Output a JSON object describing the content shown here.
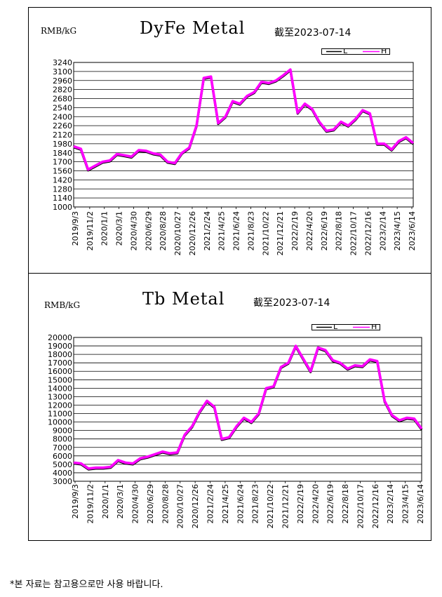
{
  "chart_data": [
    {
      "type": "line",
      "title": "DyFe Metal",
      "ylabel": "RMB/kG",
      "as_of": "截至2023-07-14",
      "ylim": [
        1000,
        3240
      ],
      "y_ticks": [
        "3240",
        "3100",
        "2960",
        "2820",
        "2680",
        "2540",
        "2400",
        "2260",
        "2120",
        "1980",
        "1840",
        "1700",
        "1560",
        "1420",
        "1280",
        "1140",
        "1000"
      ],
      "x_ticks": [
        "2019/9/3",
        "2019/11/2",
        "2020/1/1",
        "2020/3/1",
        "2020/4/30",
        "2020/6/29",
        "2020/8/28",
        "2020/10/27",
        "2020/12/26",
        "2021/2/24",
        "2021/4/25",
        "2021/6/24",
        "2021/8/23",
        "2021/10/22",
        "2021/12/21",
        "2022/2/19",
        "2022/4/20",
        "2022/6/19",
        "2022/8/18",
        "2022/10/17",
        "2022/12/16",
        "2023/2/14",
        "2023/4/15",
        "2023/6/14"
      ],
      "grid": true,
      "legend_position": "top-right",
      "colors": {
        "series1": "#000000",
        "series2": "#ff00ff"
      },
      "x": [
        "2019-09-03",
        "2019-10-03",
        "2019-11-02",
        "2019-12-02",
        "2020-01-01",
        "2020-01-31",
        "2020-03-01",
        "2020-03-31",
        "2020-04-30",
        "2020-05-30",
        "2020-06-29",
        "2020-07-29",
        "2020-08-28",
        "2020-09-27",
        "2020-10-27",
        "2020-11-26",
        "2020-12-26",
        "2021-01-25",
        "2021-02-24",
        "2021-03-26",
        "2021-04-25",
        "2021-05-25",
        "2021-06-24",
        "2021-07-24",
        "2021-08-23",
        "2021-09-22",
        "2021-10-22",
        "2021-11-21",
        "2021-12-21",
        "2022-01-20",
        "2022-02-19",
        "2022-03-21",
        "2022-04-20",
        "2022-05-20",
        "2022-06-19",
        "2022-07-19",
        "2022-08-18",
        "2022-09-17",
        "2022-10-17",
        "2022-11-16",
        "2022-12-16",
        "2023-01-15",
        "2023-02-14",
        "2023-03-16",
        "2023-04-15",
        "2023-05-15",
        "2023-06-14",
        "2023-07-14"
      ],
      "series": [
        {
          "values": [
            1940,
            1900,
            1580,
            1640,
            1700,
            1720,
            1820,
            1800,
            1780,
            1880,
            1870,
            1830,
            1810,
            1700,
            1680,
            1840,
            1920,
            2260,
            3000,
            3020,
            2300,
            2400,
            2640,
            2600,
            2720,
            2780,
            2940,
            2920,
            2960,
            3040,
            3130,
            2460,
            2600,
            2520,
            2320,
            2180,
            2200,
            2320,
            2260,
            2360,
            2500,
            2450,
            1980,
            1980,
            1890,
            2020,
            2080,
            1990
          ]
        },
        {
          "values": [
            1940,
            1900,
            1580,
            1640,
            1700,
            1720,
            1820,
            1800,
            1780,
            1880,
            1870,
            1830,
            1810,
            1700,
            1680,
            1840,
            1920,
            2260,
            3000,
            3020,
            2300,
            2400,
            2640,
            2600,
            2720,
            2780,
            2940,
            2920,
            2960,
            3040,
            3130,
            2460,
            2600,
            2520,
            2320,
            2180,
            2200,
            2320,
            2260,
            2360,
            2500,
            2450,
            1980,
            1980,
            1890,
            2020,
            2080,
            1990
          ]
        }
      ]
    },
    {
      "type": "line",
      "title": "Tb Metal",
      "ylabel": "RMB/kG",
      "as_of": "截至2023-07-14",
      "ylim": [
        3000,
        20000
      ],
      "y_ticks": [
        "20000",
        "19000",
        "18000",
        "17000",
        "16000",
        "15000",
        "14000",
        "13000",
        "12000",
        "11000",
        "10000",
        "9000",
        "8000",
        "7000",
        "6000",
        "5000",
        "4000",
        "3000"
      ],
      "x_ticks": [
        "2019/9/3",
        "2019/11/2",
        "2020/1/1",
        "2020/3/1",
        "2020/4/30",
        "2020/6/29",
        "2020/8/28",
        "2020/10/27",
        "2020/12/26",
        "2021/2/24",
        "2021/4/25",
        "2021/6/24",
        "2021/8/23",
        "2021/10/22",
        "2021/12/21",
        "2022/2/19",
        "2022/4/20",
        "2022/6/19",
        "2022/8/18",
        "2022/10/17",
        "2022/12/16",
        "2023/2/14",
        "2023/4/15",
        "2023/6/14"
      ],
      "grid": true,
      "legend_position": "top-right",
      "colors": {
        "series1": "#000000",
        "series2": "#ff00ff"
      },
      "x": [
        "2019-09-03",
        "2019-10-03",
        "2019-11-02",
        "2019-12-02",
        "2020-01-01",
        "2020-01-31",
        "2020-03-01",
        "2020-03-31",
        "2020-04-30",
        "2020-05-30",
        "2020-06-29",
        "2020-07-29",
        "2020-08-28",
        "2020-09-27",
        "2020-10-27",
        "2020-11-26",
        "2020-12-26",
        "2021-01-25",
        "2021-02-24",
        "2021-03-26",
        "2021-04-25",
        "2021-05-25",
        "2021-06-24",
        "2021-07-24",
        "2021-08-23",
        "2021-09-22",
        "2021-10-22",
        "2021-11-21",
        "2021-12-21",
        "2022-01-20",
        "2022-02-19",
        "2022-03-21",
        "2022-04-20",
        "2022-05-20",
        "2022-06-19",
        "2022-07-19",
        "2022-08-18",
        "2022-09-17",
        "2022-10-17",
        "2022-11-16",
        "2022-12-16",
        "2023-01-15",
        "2023-02-14",
        "2023-03-16",
        "2023-04-15",
        "2023-05-15",
        "2023-06-14",
        "2023-07-14"
      ],
      "series": [
        {
          "values": [
            5200,
            5100,
            4500,
            4600,
            4600,
            4700,
            5500,
            5200,
            5100,
            5700,
            5900,
            6200,
            6500,
            6300,
            6400,
            8500,
            9500,
            11200,
            12500,
            11800,
            8000,
            8200,
            9500,
            10500,
            10000,
            11000,
            14000,
            14200,
            16500,
            17000,
            19000,
            17500,
            16000,
            18800,
            18500,
            17300,
            17000,
            16300,
            16700,
            16600,
            17400,
            17200,
            12500,
            10800,
            10200,
            10500,
            10400,
            9200
          ]
        },
        {
          "values": [
            5200,
            5100,
            4500,
            4600,
            4600,
            4700,
            5500,
            5200,
            5100,
            5700,
            5900,
            6200,
            6500,
            6300,
            6400,
            8500,
            9500,
            11200,
            12500,
            11800,
            8000,
            8200,
            9500,
            10500,
            10000,
            11000,
            14000,
            14200,
            16500,
            17000,
            19000,
            17500,
            16000,
            18800,
            18500,
            17300,
            17000,
            16300,
            16700,
            16600,
            17400,
            17200,
            12500,
            10800,
            10200,
            10500,
            10400,
            9200
          ]
        }
      ]
    }
  ],
  "legend": {
    "series1_label": "L",
    "series2_label": "H"
  },
  "footnote": "*본 자료는 참고용으로만 사용 바랍니다."
}
